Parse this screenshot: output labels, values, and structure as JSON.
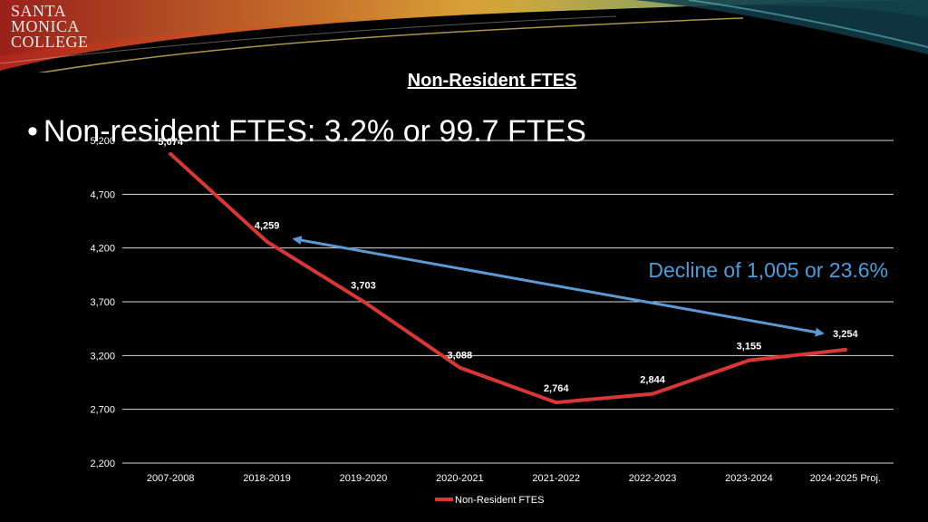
{
  "logo": {
    "line1": "SANTA",
    "line2": "MONICA",
    "line3": "COLLEGE"
  },
  "bullet": {
    "marker": "•",
    "text": "Non-resident FTES: 3.2% or 99.7 FTES"
  },
  "colors": {
    "series": "#d93636",
    "arrow": "#5b9bd5",
    "annotation": "#4a9edc",
    "gridline": "#d9d9d9",
    "text": "#ffffff"
  },
  "chart_data": {
    "type": "line",
    "title": "Non-Resident FTES",
    "categories": [
      "2007-2008",
      "2018-2019",
      "2019-2020",
      "2020-2021",
      "2021-2022",
      "2022-2023",
      "2023-2024",
      "2024-2025 Proj."
    ],
    "series": [
      {
        "name": "Non-Resident FTES",
        "values": [
          5074,
          4259,
          3703,
          3088,
          2764,
          2844,
          3155,
          3254
        ],
        "labels": [
          "5,074",
          "4,259",
          "3,703",
          "3,088",
          "2,764",
          "2,844",
          "3,155",
          "3,254"
        ]
      }
    ],
    "ylim": [
      2200,
      5200
    ],
    "yticks": [
      2200,
      2700,
      3200,
      3700,
      4200,
      4700,
      5200
    ],
    "ytick_labels": [
      "2,200",
      "2,700",
      "3,200",
      "3,700",
      "4,200",
      "4,700",
      "5,200"
    ],
    "grid": true,
    "legend": "bottom-center",
    "annotation": {
      "text": "Decline of 1,005 or 23.6%",
      "from_category": "2018-2019",
      "to_category": "2024-2025 Proj."
    }
  }
}
